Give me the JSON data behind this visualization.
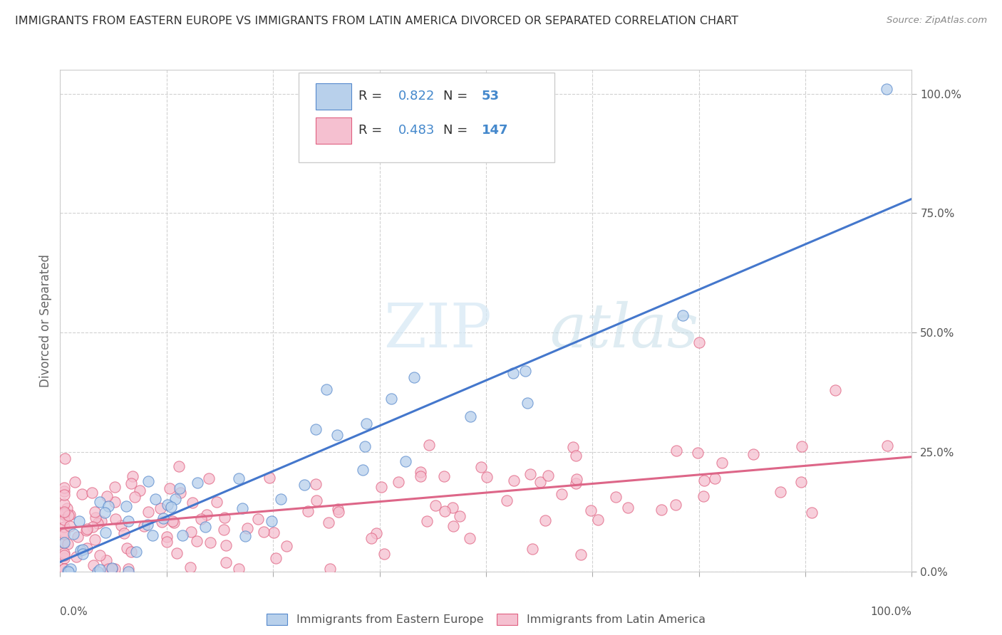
{
  "title": "IMMIGRANTS FROM EASTERN EUROPE VS IMMIGRANTS FROM LATIN AMERICA DIVORCED OR SEPARATED CORRELATION CHART",
  "source": "Source: ZipAtlas.com",
  "ylabel": "Divorced or Separated",
  "xlim": [
    0,
    100
  ],
  "ylim": [
    0,
    105
  ],
  "legend_entries": [
    {
      "label": "Immigrants from Eastern Europe",
      "R": "0.822",
      "N": "53",
      "fill_color": "#b8d0eb",
      "edge_color": "#5588cc"
    },
    {
      "label": "Immigrants from Latin America",
      "R": "0.483",
      "N": "147",
      "fill_color": "#f5c0d0",
      "edge_color": "#e06080"
    }
  ],
  "blue_line_x": [
    0,
    100
  ],
  "blue_line_y": [
    2,
    78
  ],
  "pink_line_x": [
    0,
    100
  ],
  "pink_line_y": [
    9,
    24
  ],
  "blue_line_color": "#4477cc",
  "pink_line_color": "#dd6688",
  "watermark_zip": "ZIP",
  "watermark_atlas": "atlas",
  "grid_color": "#cccccc",
  "background_color": "#ffffff",
  "title_color": "#333333",
  "title_fontsize": 11.5,
  "source_color": "#888888",
  "axis_label_color": "#666666",
  "tick_label_color": "#555555",
  "R_N_color": "#4488cc",
  "corner_label_color": "#555555",
  "seed_blue": 101,
  "seed_pink": 202
}
